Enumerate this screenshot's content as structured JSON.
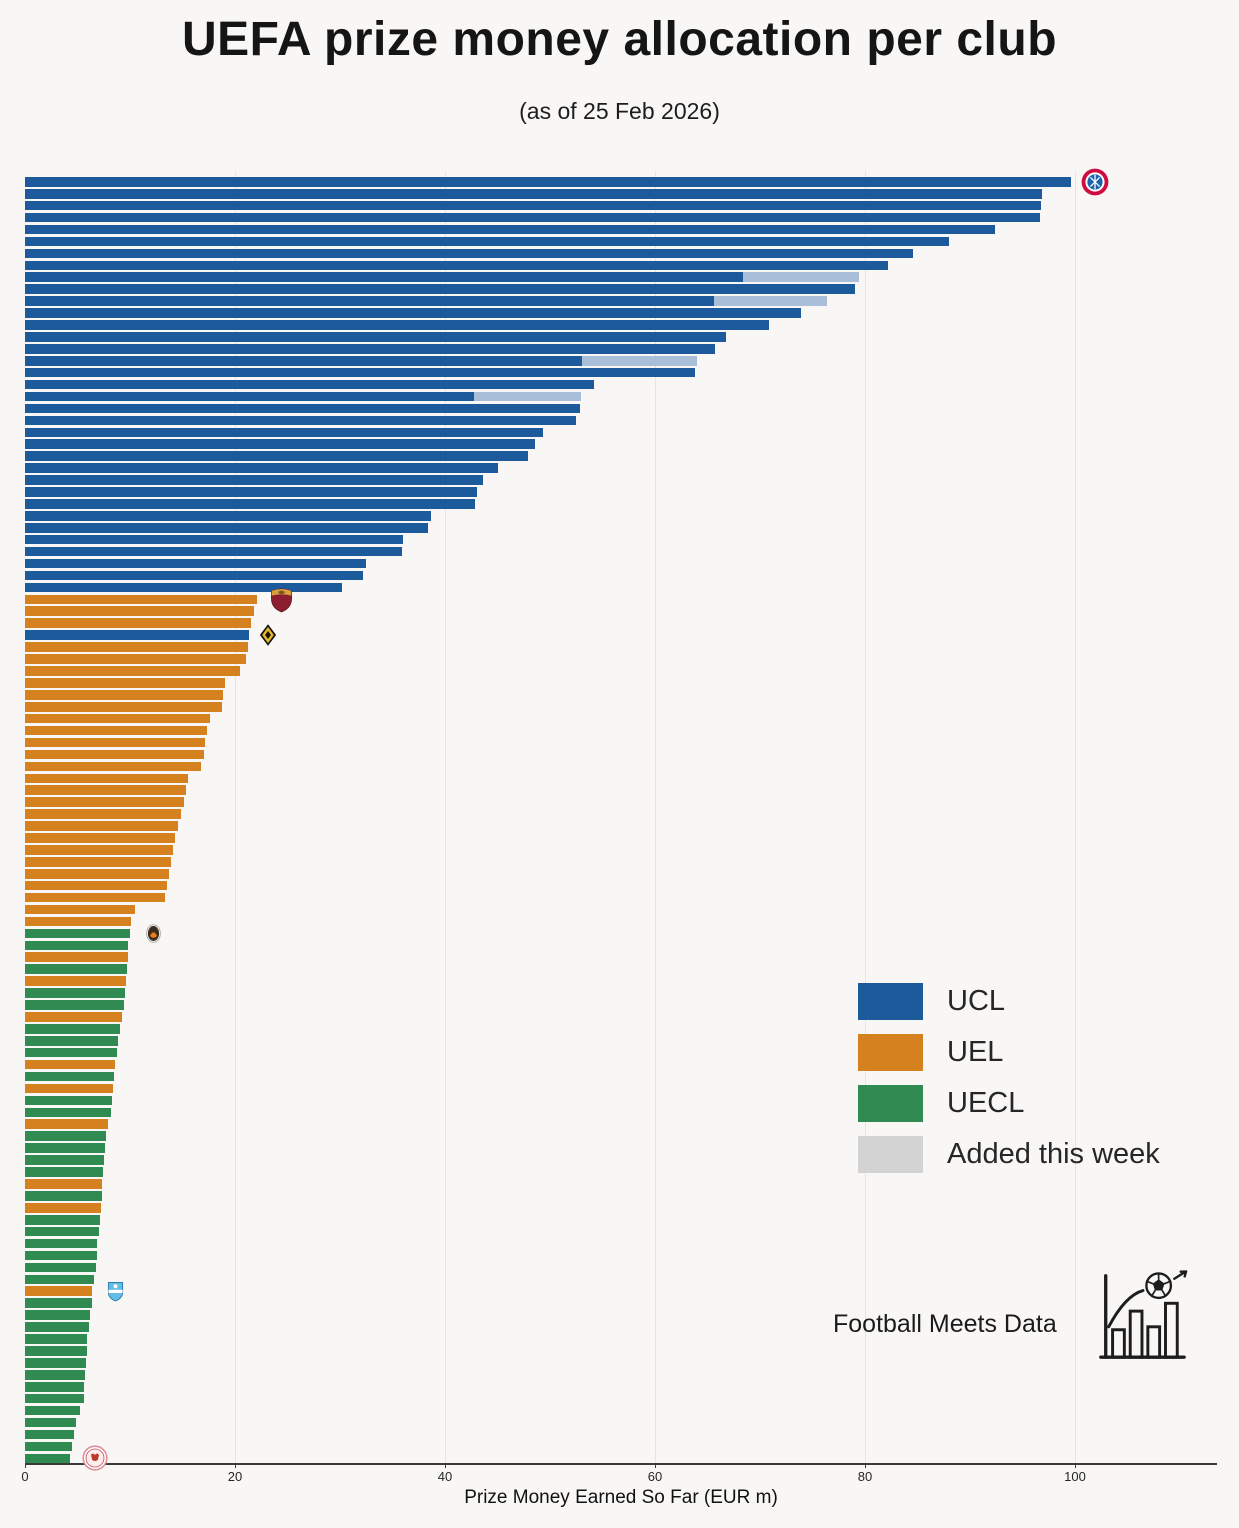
{
  "page": {
    "title": "UEFA prize money allocation per club",
    "subtitle": "(as of 25 Feb 2026)"
  },
  "axis": {
    "xlabel": "Prize Money Earned So Far (EUR m)"
  },
  "legend": {
    "items": [
      {
        "label": "UCL",
        "color": "#1c5a9c"
      },
      {
        "label": "UEL",
        "color": "#d5811f"
      },
      {
        "label": "UECL",
        "color": "#2f8b51"
      },
      {
        "label": "Added this week",
        "color": "#d3d3d3"
      }
    ]
  },
  "branding": {
    "name": "Football Meets Data"
  },
  "colors": {
    "UCL": "#1c5a9c",
    "UEL": "#d5811f",
    "UECL": "#2f8b51",
    "added": "#a9bed8"
  },
  "chart_data": {
    "type": "bar",
    "orientation": "horizontal",
    "title": "UEFA prize money allocation per club",
    "subtitle": "(as of 25 Feb 2026)",
    "xlabel": "Prize Money Earned So Far (EUR m)",
    "xlim": [
      0,
      113
    ],
    "xticks": [
      0,
      20,
      40,
      60,
      80,
      100
    ],
    "grid": "vertical-faint",
    "legend_position": "center-right",
    "value_unit": "EUR m",
    "bars": [
      {
        "v": 99.6,
        "c": "UCL",
        "crest": "bayern"
      },
      {
        "v": 96.9,
        "c": "UCL"
      },
      {
        "v": 96.8,
        "c": "UCL"
      },
      {
        "v": 96.7,
        "c": "UCL"
      },
      {
        "v": 92.4,
        "c": "UCL"
      },
      {
        "v": 88.0,
        "c": "UCL"
      },
      {
        "v": 84.6,
        "c": "UCL"
      },
      {
        "v": 82.2,
        "c": "UCL"
      },
      {
        "v": 79.4,
        "c": "UCL",
        "added": 11.0
      },
      {
        "v": 79.0,
        "c": "UCL"
      },
      {
        "v": 76.4,
        "c": "UCL",
        "added": 10.8
      },
      {
        "v": 73.9,
        "c": "UCL"
      },
      {
        "v": 70.9,
        "c": "UCL"
      },
      {
        "v": 66.8,
        "c": "UCL"
      },
      {
        "v": 65.7,
        "c": "UCL"
      },
      {
        "v": 64.0,
        "c": "UCL",
        "added": 11.0
      },
      {
        "v": 63.8,
        "c": "UCL"
      },
      {
        "v": 54.2,
        "c": "UCL"
      },
      {
        "v": 53.0,
        "c": "UCL",
        "added": 10.2
      },
      {
        "v": 52.9,
        "c": "UCL"
      },
      {
        "v": 52.5,
        "c": "UCL"
      },
      {
        "v": 49.3,
        "c": "UCL"
      },
      {
        "v": 48.6,
        "c": "UCL"
      },
      {
        "v": 47.9,
        "c": "UCL"
      },
      {
        "v": 45.0,
        "c": "UCL"
      },
      {
        "v": 43.6,
        "c": "UCL"
      },
      {
        "v": 43.0,
        "c": "UCL"
      },
      {
        "v": 42.9,
        "c": "UCL"
      },
      {
        "v": 38.7,
        "c": "UCL"
      },
      {
        "v": 38.4,
        "c": "UCL"
      },
      {
        "v": 36.0,
        "c": "UCL"
      },
      {
        "v": 35.9,
        "c": "UCL"
      },
      {
        "v": 32.5,
        "c": "UCL"
      },
      {
        "v": 32.2,
        "c": "UCL"
      },
      {
        "v": 30.2,
        "c": "UCL"
      },
      {
        "v": 22.1,
        "c": "UEL",
        "crest": "roma"
      },
      {
        "v": 21.8,
        "c": "UEL"
      },
      {
        "v": 21.5,
        "c": "UEL"
      },
      {
        "v": 21.3,
        "c": "UCL",
        "crest": "kairat"
      },
      {
        "v": 21.2,
        "c": "UEL"
      },
      {
        "v": 21.0,
        "c": "UEL"
      },
      {
        "v": 20.5,
        "c": "UEL"
      },
      {
        "v": 19.0,
        "c": "UEL"
      },
      {
        "v": 18.9,
        "c": "UEL"
      },
      {
        "v": 18.8,
        "c": "UEL"
      },
      {
        "v": 17.6,
        "c": "UEL"
      },
      {
        "v": 17.3,
        "c": "UEL"
      },
      {
        "v": 17.1,
        "c": "UEL"
      },
      {
        "v": 17.0,
        "c": "UEL"
      },
      {
        "v": 16.8,
        "c": "UEL"
      },
      {
        "v": 15.5,
        "c": "UEL"
      },
      {
        "v": 15.3,
        "c": "UEL"
      },
      {
        "v": 15.1,
        "c": "UEL"
      },
      {
        "v": 14.9,
        "c": "UEL"
      },
      {
        "v": 14.6,
        "c": "UEL"
      },
      {
        "v": 14.3,
        "c": "UEL"
      },
      {
        "v": 14.1,
        "c": "UEL"
      },
      {
        "v": 13.9,
        "c": "UEL"
      },
      {
        "v": 13.7,
        "c": "UEL"
      },
      {
        "v": 13.5,
        "c": "UEL"
      },
      {
        "v": 13.3,
        "c": "UEL"
      },
      {
        "v": 10.5,
        "c": "UEL"
      },
      {
        "v": 10.1,
        "c": "UEL"
      },
      {
        "v": 10.0,
        "c": "UECL",
        "crest": "shakhtar"
      },
      {
        "v": 9.8,
        "c": "UECL"
      },
      {
        "v": 9.8,
        "c": "UEL"
      },
      {
        "v": 9.7,
        "c": "UECL"
      },
      {
        "v": 9.6,
        "c": "UEL"
      },
      {
        "v": 9.5,
        "c": "UECL"
      },
      {
        "v": 9.4,
        "c": "UECL"
      },
      {
        "v": 9.2,
        "c": "UEL"
      },
      {
        "v": 9.0,
        "c": "UECL"
      },
      {
        "v": 8.9,
        "c": "UECL"
      },
      {
        "v": 8.8,
        "c": "UECL"
      },
      {
        "v": 8.6,
        "c": "UEL"
      },
      {
        "v": 8.5,
        "c": "UECL"
      },
      {
        "v": 8.4,
        "c": "UEL"
      },
      {
        "v": 8.3,
        "c": "UECL"
      },
      {
        "v": 8.2,
        "c": "UECL"
      },
      {
        "v": 7.9,
        "c": "UEL"
      },
      {
        "v": 7.7,
        "c": "UECL"
      },
      {
        "v": 7.6,
        "c": "UECL"
      },
      {
        "v": 7.5,
        "c": "UECL"
      },
      {
        "v": 7.4,
        "c": "UECL"
      },
      {
        "v": 7.3,
        "c": "UEL"
      },
      {
        "v": 7.3,
        "c": "UECL"
      },
      {
        "v": 7.2,
        "c": "UEL"
      },
      {
        "v": 7.1,
        "c": "UECL"
      },
      {
        "v": 7.0,
        "c": "UECL"
      },
      {
        "v": 6.9,
        "c": "UECL"
      },
      {
        "v": 6.9,
        "c": "UECL"
      },
      {
        "v": 6.8,
        "c": "UECL"
      },
      {
        "v": 6.6,
        "c": "UECL"
      },
      {
        "v": 6.4,
        "c": "UEL",
        "crest": "malmo"
      },
      {
        "v": 6.4,
        "c": "UECL"
      },
      {
        "v": 6.2,
        "c": "UECL"
      },
      {
        "v": 6.1,
        "c": "UECL"
      },
      {
        "v": 5.9,
        "c": "UECL"
      },
      {
        "v": 5.9,
        "c": "UECL"
      },
      {
        "v": 5.8,
        "c": "UECL"
      },
      {
        "v": 5.7,
        "c": "UECL"
      },
      {
        "v": 5.6,
        "c": "UECL"
      },
      {
        "v": 5.6,
        "c": "UECL"
      },
      {
        "v": 5.2,
        "c": "UECL"
      },
      {
        "v": 4.9,
        "c": "UECL"
      },
      {
        "v": 4.7,
        "c": "UECL"
      },
      {
        "v": 4.5,
        "c": "UECL"
      },
      {
        "v": 4.3,
        "c": "UECL",
        "crest": "redimps"
      }
    ]
  }
}
